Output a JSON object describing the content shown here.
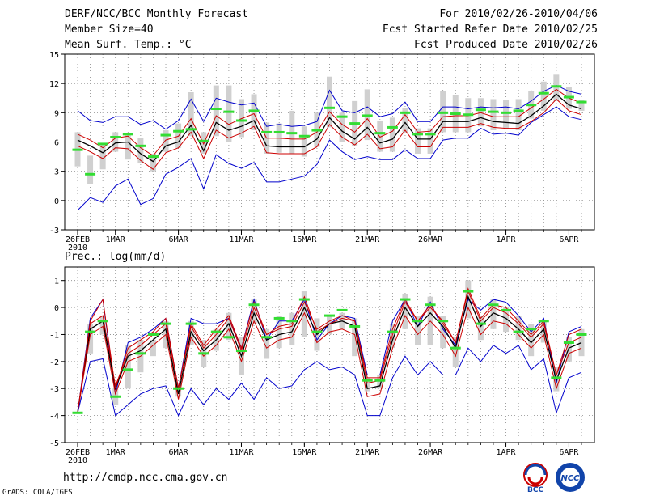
{
  "header": {
    "left": [
      "DERF/NCC/BCC Monthly Forecast",
      "Member Size=40",
      "Mean Surf. Temp.: °C"
    ],
    "right": [
      "For 2010/02/26-2010/04/06",
      "Fcst Started Refer Date 2010/02/25",
      "Fcst Produced Date 2010/02/26"
    ]
  },
  "footer": {
    "url": "http://cmdp.ncc.cma.gov.cn",
    "grads": "GrADS: COLA/IGES",
    "logo_left_text": "BCC",
    "logo_right_text": "NCC"
  },
  "colors": {
    "envelope": "#0000cc",
    "spread": "#cc0000",
    "mean": "#000000",
    "box": "#d0d0d0",
    "median": "#33dd33"
  },
  "chart_data": [
    {
      "type": "line",
      "title": "Mean Surf. Temp.: °C",
      "x_tick_labels": [
        "26FEB",
        "1MAR",
        "6MAR",
        "11MAR",
        "16MAR",
        "21MAR",
        "26MAR",
        "1APR",
        "6APR"
      ],
      "x_year_label": "2010",
      "x_tick_days": [
        0,
        3,
        8,
        13,
        18,
        23,
        28,
        34,
        39
      ],
      "ylim": [
        -3,
        15
      ],
      "yticks": [
        -3,
        0,
        3,
        6,
        9,
        12,
        15
      ],
      "series": [
        {
          "name": "max",
          "values": [
            9.2,
            8.2,
            8.0,
            8.6,
            8.6,
            7.8,
            8.2,
            7.3,
            8.2,
            10.4,
            8.1,
            10.5,
            10.1,
            9.8,
            10.0,
            7.6,
            7.8,
            7.6,
            7.7,
            8.1,
            11.3,
            9.2,
            9.0,
            9.6,
            8.6,
            8.9,
            10.1,
            8.1,
            8.1,
            9.6,
            9.6,
            9.4,
            9.6,
            9.5,
            9.6,
            9.4,
            10.2,
            11.2,
            11.8,
            11.2,
            10.9
          ]
        },
        {
          "name": "upper",
          "values": [
            6.8,
            6.2,
            5.4,
            6.4,
            6.6,
            5.4,
            4.6,
            6.2,
            6.6,
            8.4,
            5.8,
            8.7,
            7.8,
            8.4,
            8.9,
            6.4,
            6.4,
            6.3,
            6.3,
            7.0,
            9.1,
            7.8,
            7.0,
            8.4,
            6.5,
            7.1,
            8.8,
            7.0,
            7.1,
            8.6,
            8.7,
            8.7,
            9.0,
            8.6,
            8.6,
            8.6,
            9.5,
            10.4,
            11.4,
            10.5,
            10.0
          ]
        },
        {
          "name": "mean",
          "values": [
            6.2,
            5.6,
            4.9,
            5.9,
            6.0,
            4.8,
            4.0,
            5.6,
            6.0,
            7.7,
            5.1,
            8.0,
            7.2,
            7.6,
            8.2,
            5.6,
            5.5,
            5.5,
            5.5,
            6.3,
            8.5,
            7.1,
            6.3,
            7.5,
            5.9,
            6.3,
            8.0,
            6.3,
            6.3,
            8.1,
            8.1,
            8.1,
            8.5,
            8.1,
            8.0,
            7.9,
            8.7,
            9.7,
            10.9,
            9.8,
            9.4
          ]
        },
        {
          "name": "lower",
          "values": [
            5.6,
            5.0,
            4.3,
            5.4,
            5.3,
            4.1,
            3.2,
            4.9,
            5.4,
            7.0,
            4.3,
            7.2,
            6.4,
            6.9,
            7.6,
            4.9,
            4.8,
            4.8,
            4.8,
            5.5,
            7.8,
            6.5,
            5.7,
            6.8,
            5.3,
            5.5,
            7.2,
            5.5,
            5.5,
            7.5,
            7.5,
            7.5,
            7.9,
            7.5,
            7.4,
            7.4,
            8.1,
            9.0,
            10.4,
            9.2,
            8.8
          ]
        },
        {
          "name": "min",
          "values": [
            -1.0,
            0.3,
            -0.2,
            1.5,
            2.2,
            -0.4,
            0.2,
            2.7,
            3.4,
            4.3,
            1.2,
            4.7,
            3.8,
            3.3,
            3.9,
            1.9,
            1.9,
            2.2,
            2.5,
            3.7,
            6.2,
            5.0,
            4.2,
            4.5,
            4.2,
            4.2,
            5.2,
            4.3,
            4.3,
            6.2,
            6.4,
            6.4,
            7.4,
            6.8,
            6.9,
            6.7,
            8.0,
            8.8,
            9.6,
            8.6,
            8.3
          ]
        }
      ],
      "box_q1": [
        3.5,
        1.7,
        3.2,
        5.0,
        4.2,
        3.8,
        3.0,
        5.0,
        5.4,
        6.6,
        4.8,
        6.6,
        6.0,
        6.5,
        7.2,
        4.8,
        4.9,
        4.8,
        4.5,
        5.5,
        7.5,
        6.0,
        5.6,
        6.2,
        5.0,
        5.0,
        7.0,
        4.8,
        4.8,
        7.0,
        7.0,
        7.0,
        7.6,
        7.2,
        7.4,
        7.2,
        8.4,
        9.2,
        10.2,
        9.4,
        9.2
      ],
      "box_q3": [
        7.0,
        4.6,
        5.9,
        7.0,
        6.9,
        6.4,
        4.8,
        7.2,
        7.9,
        11.1,
        7.0,
        11.8,
        11.8,
        10.4,
        10.9,
        8.0,
        7.9,
        9.2,
        7.6,
        9.0,
        12.7,
        9.0,
        10.2,
        11.4,
        8.2,
        8.5,
        9.5,
        7.4,
        7.4,
        11.2,
        10.8,
        10.5,
        10.5,
        10.4,
        10.3,
        10.4,
        11.2,
        12.2,
        12.9,
        11.6,
        10.3
      ],
      "median": [
        5.2,
        2.7,
        5.8,
        6.5,
        6.8,
        5.6,
        4.5,
        6.7,
        7.1,
        7.3,
        6.1,
        9.4,
        9.1,
        8.2,
        9.2,
        7.0,
        7.0,
        6.9,
        6.6,
        7.2,
        9.5,
        8.6,
        7.9,
        8.7,
        6.9,
        7.5,
        9.0,
        6.8,
        6.8,
        9.0,
        8.9,
        8.8,
        9.3,
        9.1,
        9.0,
        9.2,
        9.8,
        11.0,
        11.7,
        10.6,
        10.1
      ]
    },
    {
      "type": "line",
      "title": "Prec.: log(mm/d)",
      "x_tick_labels": [
        "26FEB",
        "1MAR",
        "6MAR",
        "11MAR",
        "16MAR",
        "21MAR",
        "26MAR",
        "1APR",
        "6APR"
      ],
      "x_year_label": "2010",
      "x_tick_days": [
        0,
        3,
        8,
        13,
        18,
        23,
        28,
        34,
        39
      ],
      "ylim": [
        -5,
        1.5
      ],
      "yticks": [
        -5,
        -4,
        -3,
        -2,
        -1,
        0,
        1
      ],
      "series": [
        {
          "name": "max",
          "values": [
            -3.9,
            -0.4,
            0.3,
            -3.2,
            -1.3,
            -1.1,
            -0.8,
            -0.4,
            -3.0,
            -0.4,
            -0.6,
            -0.6,
            -0.4,
            -1.5,
            0.3,
            -1.2,
            -0.5,
            -0.5,
            0.3,
            -1.2,
            -0.6,
            -0.3,
            -0.4,
            -2.5,
            -2.5,
            -0.5,
            0.3,
            -0.7,
            0.2,
            -0.8,
            -1.4,
            0.3,
            -0.1,
            0.3,
            0.2,
            -0.3,
            -0.9,
            -0.4,
            -2.8,
            -0.9,
            -0.7
          ]
        },
        {
          "name": "upper",
          "values": [
            -3.9,
            -0.6,
            -0.3,
            -2.9,
            -1.7,
            -1.4,
            -1.0,
            -0.6,
            -3.0,
            -0.7,
            -1.5,
            -1.0,
            -0.4,
            -1.6,
            0.0,
            -1.0,
            -0.8,
            -0.7,
            0.2,
            -0.8,
            -0.5,
            -0.3,
            -0.5,
            -2.8,
            -2.7,
            -1.0,
            0.2,
            -0.5,
            0.0,
            -0.5,
            -1.3,
            0.6,
            -0.5,
            0.0,
            -0.2,
            -0.6,
            -1.1,
            -0.6,
            -2.5,
            -1.3,
            -1.1
          ]
        },
        {
          "name": "mean",
          "values": [
            -3.9,
            -0.8,
            -0.5,
            -3.0,
            -1.8,
            -1.6,
            -1.2,
            -0.8,
            -3.2,
            -0.9,
            -1.6,
            -1.2,
            -0.6,
            -1.8,
            -0.2,
            -1.2,
            -1.0,
            -0.9,
            0.0,
            -1.0,
            -0.6,
            -0.5,
            -0.7,
            -3.0,
            -2.9,
            -1.2,
            0.0,
            -0.7,
            -0.2,
            -0.7,
            -1.5,
            0.4,
            -0.7,
            -0.2,
            -0.4,
            -0.8,
            -1.3,
            -0.8,
            -2.7,
            -1.5,
            -1.3
          ]
        },
        {
          "name": "lower",
          "values": [
            -3.9,
            -1.0,
            -0.7,
            -3.2,
            -2.0,
            -1.8,
            -1.4,
            -1.0,
            -3.4,
            -1.1,
            -1.8,
            -1.4,
            -0.8,
            -2.0,
            -0.5,
            -1.5,
            -1.2,
            -1.1,
            -0.2,
            -1.3,
            -0.9,
            -0.8,
            -1.0,
            -3.3,
            -3.2,
            -1.5,
            -0.3,
            -1.0,
            -0.5,
            -1.0,
            -1.8,
            0.0,
            -1.0,
            -0.5,
            -0.6,
            -1.0,
            -1.5,
            -1.0,
            -3.0,
            -1.7,
            -1.5
          ]
        },
        {
          "name": "min",
          "values": [
            -3.9,
            -2.0,
            -1.9,
            -4.0,
            -3.6,
            -3.2,
            -3.0,
            -2.9,
            -4.0,
            -3.0,
            -3.6,
            -3.0,
            -3.4,
            -2.8,
            -3.4,
            -2.6,
            -3.0,
            -2.9,
            -2.3,
            -2.0,
            -2.3,
            -2.2,
            -2.5,
            -4.0,
            -4.0,
            -2.6,
            -1.8,
            -2.5,
            -2.0,
            -2.5,
            -2.5,
            -1.5,
            -2.0,
            -1.4,
            -1.7,
            -1.4,
            -2.3,
            -1.9,
            -3.9,
            -2.6,
            -2.4
          ]
        },
        {
          "name": "max2",
          "values": [
            -3.9,
            -0.5,
            0.3,
            -3.0,
            -1.5,
            -1.2,
            -0.9,
            -0.4,
            -3.0,
            -0.6,
            -1.4,
            -0.8,
            -0.3,
            -1.5,
            0.2,
            -1.0,
            -0.7,
            -0.6,
            0.4,
            -0.9,
            -0.6,
            -0.4,
            -0.5,
            -2.6,
            -2.6,
            -0.8,
            0.3,
            -0.5,
            0.1,
            -0.6,
            -1.3,
            0.7,
            -0.4,
            0.1,
            0.0,
            -0.5,
            -1.0,
            -0.5,
            -2.5,
            -1.0,
            -0.8
          ]
        }
      ],
      "box_q1": [
        -3.9,
        -1.7,
        -1.0,
        -3.6,
        -3.0,
        -2.4,
        -1.8,
        -1.5,
        -3.3,
        -1.4,
        -2.2,
        -1.6,
        -1.2,
        -2.5,
        -0.6,
        -1.9,
        -1.5,
        -1.4,
        -1.1,
        -1.6,
        -1.0,
        -0.8,
        -1.8,
        -3.1,
        -3.0,
        -1.5,
        -0.8,
        -1.4,
        -1.4,
        -1.5,
        -2.2,
        -0.4,
        -1.2,
        -0.8,
        -0.9,
        -1.2,
        -1.8,
        -1.3,
        -3.1,
        -2.0,
        -1.8
      ],
      "box_q3": [
        -3.9,
        -0.6,
        -0.3,
        -3.0,
        -1.4,
        -1.2,
        -1.2,
        -0.5,
        -2.8,
        -0.5,
        -1.2,
        -0.8,
        -0.2,
        -1.1,
        0.3,
        -0.8,
        -0.3,
        -0.2,
        0.6,
        -0.4,
        -0.3,
        -0.2,
        -0.4,
        -2.6,
        -2.5,
        -0.6,
        0.5,
        -0.3,
        0.4,
        -0.3,
        -1.1,
        1.0,
        -0.3,
        0.3,
        0.0,
        -0.3,
        -0.6,
        -0.5,
        -2.2,
        -1.1,
        -0.8
      ],
      "median": [
        -3.9,
        -0.9,
        -0.5,
        -3.3,
        -2.3,
        -1.7,
        -1.0,
        -0.6,
        -3.0,
        -0.6,
        -1.7,
        -0.9,
        -1.1,
        -1.6,
        0.1,
        -1.1,
        -0.4,
        -0.5,
        0.3,
        -0.9,
        -0.3,
        -0.1,
        -0.7,
        -2.7,
        -2.7,
        -0.9,
        0.3,
        -0.5,
        0.1,
        -0.5,
        -1.5,
        0.6,
        -0.6,
        0.1,
        -0.1,
        -0.9,
        -0.8,
        -0.5,
        -2.6,
        -1.3,
        -1.0
      ]
    }
  ]
}
